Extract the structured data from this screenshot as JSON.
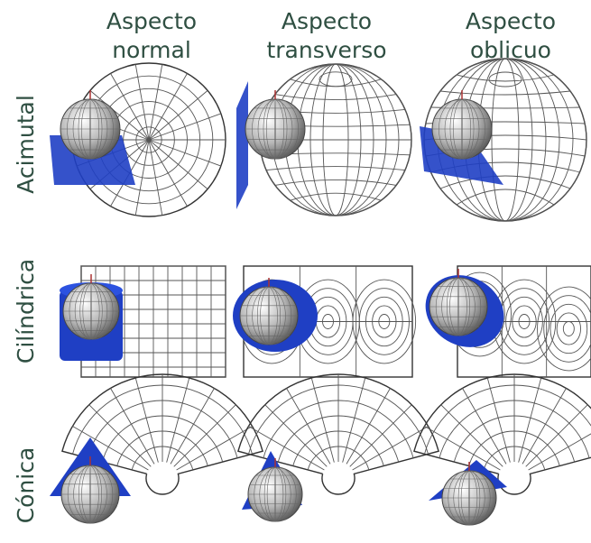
{
  "columns": [
    {
      "line1": "Aspecto",
      "line2": "normal"
    },
    {
      "line1": "Aspecto",
      "line2": "transverso"
    },
    {
      "line1": "Aspecto",
      "line2": "oblicuo"
    }
  ],
  "rows": [
    "Acimutal",
    "Cilíndrica",
    "Cónica"
  ]
}
